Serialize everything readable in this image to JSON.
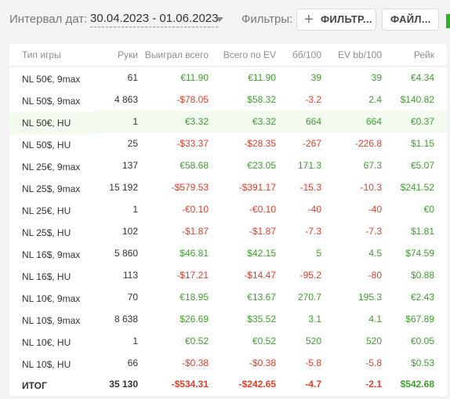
{
  "toolbar": {
    "date_label": "Интервал дат:",
    "date_range": "30.04.2023 - 01.06.2023",
    "filters_label": "Фильтры:",
    "filters_button": "ФИЛЬТР...",
    "files_button": "ФАЙЛ..."
  },
  "colors": {
    "positive": "#3f9f2f",
    "negative": "#e03f2c",
    "highlight_row": "#f3fbf1"
  },
  "table": {
    "columns": [
      "Тип игры",
      "Руки",
      "Выиграл всего",
      "Всего по EV",
      "бб/100",
      "EV bb/100",
      "Рейк"
    ],
    "rows": [
      {
        "type": "NL 50€, 9max",
        "hands": "61",
        "won": "€11.90",
        "ev": "€11.90",
        "bb100": "39",
        "evbb100": "39",
        "rake": "€4.34"
      },
      {
        "type": "NL 50$, 9max",
        "hands": "4 863",
        "won": "-$78.05",
        "ev": "$58.32",
        "bb100": "-3.2",
        "evbb100": "2.4",
        "rake": "$140.82"
      },
      {
        "type": "NL 50€, HU",
        "hands": "1",
        "won": "€3.32",
        "ev": "€3.32",
        "bb100": "664",
        "evbb100": "664",
        "rake": "€0.37"
      },
      {
        "type": "NL 50$, HU",
        "hands": "25",
        "won": "-$33.37",
        "ev": "-$28.35",
        "bb100": "-267",
        "evbb100": "-226.8",
        "rake": "$1.15"
      },
      {
        "type": "NL 25€, 9max",
        "hands": "137",
        "won": "€58.68",
        "ev": "€23.05",
        "bb100": "171.3",
        "evbb100": "67.3",
        "rake": "€5.07"
      },
      {
        "type": "NL 25$, 9max",
        "hands": "15 192",
        "won": "-$579.53",
        "ev": "-$391.17",
        "bb100": "-15.3",
        "evbb100": "-10.3",
        "rake": "$241.52"
      },
      {
        "type": "NL 25€, HU",
        "hands": "1",
        "won": "-€0.10",
        "ev": "-€0.10",
        "bb100": "-40",
        "evbb100": "-40",
        "rake": "€0"
      },
      {
        "type": "NL 25$, HU",
        "hands": "102",
        "won": "-$1.87",
        "ev": "-$1.87",
        "bb100": "-7.3",
        "evbb100": "-7.3",
        "rake": "$1.81"
      },
      {
        "type": "NL 16$, 9max",
        "hands": "5 860",
        "won": "$46.81",
        "ev": "$42.15",
        "bb100": "5",
        "evbb100": "4.5",
        "rake": "$74.59"
      },
      {
        "type": "NL 16$, HU",
        "hands": "113",
        "won": "-$17.21",
        "ev": "-$14.47",
        "bb100": "-95.2",
        "evbb100": "-80",
        "rake": "$0.88"
      },
      {
        "type": "NL 10€, 9max",
        "hands": "70",
        "won": "€18.95",
        "ev": "€13.67",
        "bb100": "270.7",
        "evbb100": "195.3",
        "rake": "€2.43"
      },
      {
        "type": "NL 10$, 9max",
        "hands": "8 638",
        "won": "$26.69",
        "ev": "$35.52",
        "bb100": "3.1",
        "evbb100": "4.1",
        "rake": "$67.89"
      },
      {
        "type": "NL 10€, HU",
        "hands": "1",
        "won": "€0.52",
        "ev": "€0.52",
        "bb100": "520",
        "evbb100": "520",
        "rake": "€0.05"
      },
      {
        "type": "NL 10$, HU",
        "hands": "66",
        "won": "-$0.38",
        "ev": "-$0.38",
        "bb100": "-5.8",
        "evbb100": "-5.8",
        "rake": "$0.53"
      }
    ],
    "total": {
      "type": "ИТОГ",
      "hands": "35 130",
      "won": "-$534.31",
      "ev": "-$242.65",
      "bb100": "-4.7",
      "evbb100": "-2.1",
      "rake": "$542.68"
    }
  }
}
